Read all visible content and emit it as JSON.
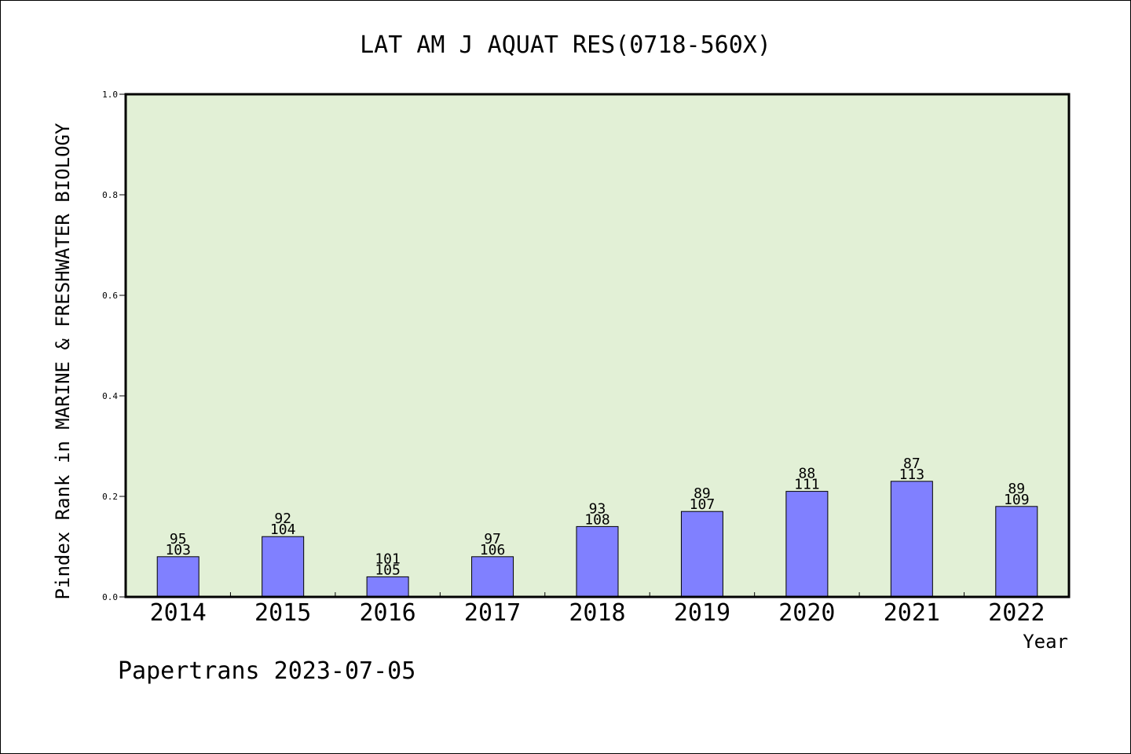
{
  "chart_data": {
    "type": "bar",
    "title": "LAT AM J AQUAT RES(0718-560X)",
    "xlabel": "Year",
    "ylabel": "Pindex Rank in MARINE & FRESHWATER BIOLOGY",
    "categories": [
      "2014",
      "2015",
      "2016",
      "2017",
      "2018",
      "2019",
      "2020",
      "2021",
      "2022"
    ],
    "values": [
      0.08,
      0.12,
      0.04,
      0.08,
      0.14,
      0.17,
      0.21,
      0.23,
      0.18
    ],
    "rank_labels": [
      "95",
      "92",
      "101",
      "97",
      "93",
      "89",
      "88",
      "87",
      "89"
    ],
    "total_labels": [
      "103",
      "104",
      "105",
      "106",
      "108",
      "107",
      "111",
      "113",
      "109"
    ],
    "ylim": [
      0,
      1.0
    ],
    "yticks": [
      "0.0",
      "0.2",
      "0.4",
      "0.6",
      "0.8",
      "1.0"
    ],
    "grid": false,
    "bar_color": "#8080ff",
    "plot_background": "#e2f0d6",
    "footer": "Papertrans 2023-07-05"
  }
}
